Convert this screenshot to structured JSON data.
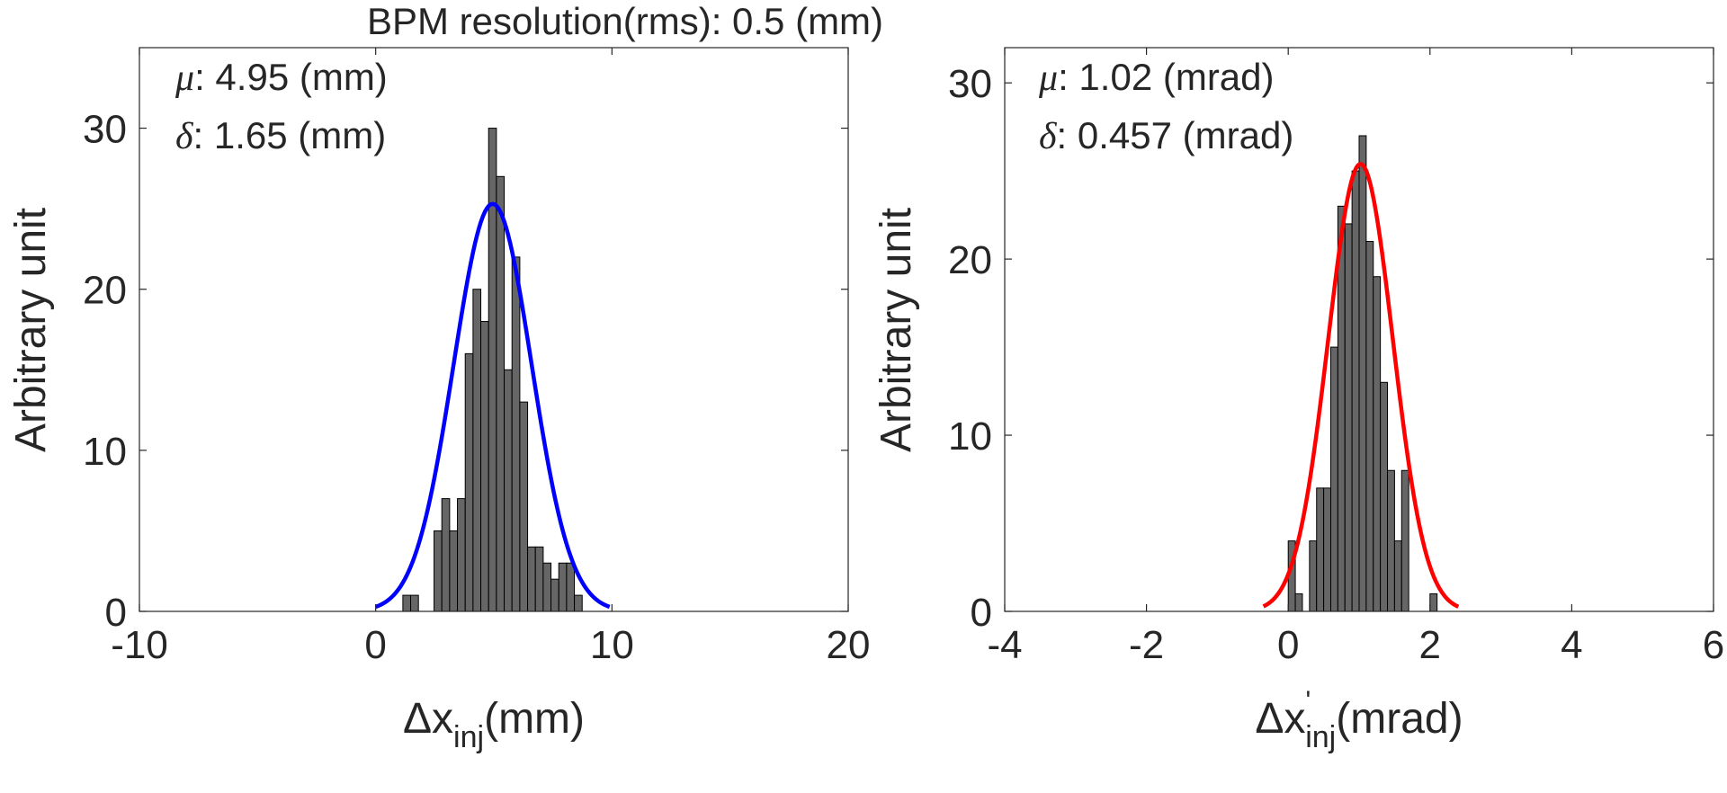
{
  "figure": {
    "suptitle": "BPM resolution(rms): 0.5 (mm)"
  },
  "chart_data": [
    {
      "type": "bar",
      "subtype": "histogram",
      "xlabel_base": "Δx",
      "xlabel_sub": "inj",
      "xlabel_sup": "",
      "xlabel_unit": "(mm)",
      "ylabel": "Arbitrary unit",
      "xlim": [
        -10,
        20
      ],
      "ylim": [
        0,
        35
      ],
      "xticks": [
        -10,
        0,
        10,
        20
      ],
      "xtick_labels": [
        "-10",
        "0",
        "10",
        "20"
      ],
      "yticks": [
        0,
        10,
        20,
        30
      ],
      "ytick_labels": [
        "0",
        "10",
        "20",
        "30"
      ],
      "bin_width": 0.33,
      "bins": [
        {
          "x0": 1.15,
          "y": 1
        },
        {
          "x0": 1.48,
          "y": 1
        },
        {
          "x0": 2.47,
          "y": 5
        },
        {
          "x0": 2.8,
          "y": 7
        },
        {
          "x0": 3.13,
          "y": 5
        },
        {
          "x0": 3.46,
          "y": 7
        },
        {
          "x0": 3.79,
          "y": 16
        },
        {
          "x0": 4.12,
          "y": 20
        },
        {
          "x0": 4.45,
          "y": 18
        },
        {
          "x0": 4.78,
          "y": 30
        },
        {
          "x0": 5.11,
          "y": 27
        },
        {
          "x0": 5.44,
          "y": 15
        },
        {
          "x0": 5.77,
          "y": 22
        },
        {
          "x0": 6.1,
          "y": 13
        },
        {
          "x0": 6.43,
          "y": 4
        },
        {
          "x0": 6.76,
          "y": 4
        },
        {
          "x0": 7.09,
          "y": 3
        },
        {
          "x0": 7.42,
          "y": 2
        },
        {
          "x0": 7.75,
          "y": 3
        },
        {
          "x0": 8.08,
          "y": 3
        },
        {
          "x0": 8.41,
          "y": 1
        }
      ],
      "fit": {
        "mu": 4.95,
        "sigma": 1.65,
        "peak": 25.3,
        "x_range": [
          0,
          9.9
        ],
        "color": "#0000ff"
      },
      "annotations": [
        {
          "symbol": "μ",
          "text": ": 4.95 (mm)"
        },
        {
          "symbol": "δ",
          "text": ": 1.65 (mm)"
        }
      ]
    },
    {
      "type": "bar",
      "subtype": "histogram",
      "xlabel_base": "Δx",
      "xlabel_sub": "inj",
      "xlabel_sup": "'",
      "xlabel_unit": "(mrad)",
      "ylabel": "Arbitrary unit",
      "xlim": [
        -4,
        6
      ],
      "ylim": [
        0,
        32
      ],
      "xticks": [
        -4,
        -2,
        0,
        2,
        4,
        6
      ],
      "xtick_labels": [
        "-4",
        "-2",
        "0",
        "2",
        "4",
        "6"
      ],
      "yticks": [
        0,
        10,
        20,
        30
      ],
      "ytick_labels": [
        "0",
        "10",
        "20",
        "30"
      ],
      "bin_width": 0.1,
      "bins": [
        {
          "x0": 0.0,
          "y": 4
        },
        {
          "x0": 0.1,
          "y": 1
        },
        {
          "x0": 0.2,
          "y": 0
        },
        {
          "x0": 0.3,
          "y": 4
        },
        {
          "x0": 0.4,
          "y": 7
        },
        {
          "x0": 0.5,
          "y": 7
        },
        {
          "x0": 0.6,
          "y": 15
        },
        {
          "x0": 0.7,
          "y": 23
        },
        {
          "x0": 0.8,
          "y": 22
        },
        {
          "x0": 0.9,
          "y": 25
        },
        {
          "x0": 1.0,
          "y": 27
        },
        {
          "x0": 1.1,
          "y": 21
        },
        {
          "x0": 1.2,
          "y": 19
        },
        {
          "x0": 1.3,
          "y": 13
        },
        {
          "x0": 1.4,
          "y": 8
        },
        {
          "x0": 1.5,
          "y": 4
        },
        {
          "x0": 1.6,
          "y": 8
        },
        {
          "x0": 1.7,
          "y": 0
        },
        {
          "x0": 1.8,
          "y": 0
        },
        {
          "x0": 1.9,
          "y": 0
        },
        {
          "x0": 2.0,
          "y": 1
        }
      ],
      "fit": {
        "mu": 1.02,
        "sigma": 0.457,
        "peak": 25.4,
        "x_range": [
          -0.35,
          2.4
        ],
        "color": "#ff0000"
      },
      "annotations": [
        {
          "symbol": "μ",
          "text": ": 1.02 (mrad)"
        },
        {
          "symbol": "δ",
          "text": ": 0.457 (mrad)"
        }
      ]
    }
  ]
}
